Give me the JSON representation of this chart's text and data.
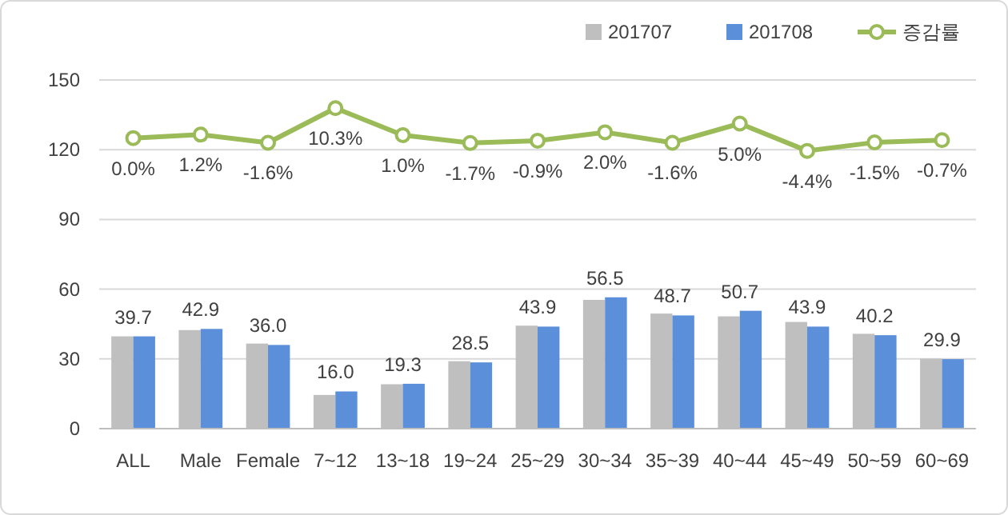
{
  "chart_data": {
    "type": "bar",
    "categories": [
      "ALL",
      "Male",
      "Female",
      "7~12",
      "13~18",
      "19~24",
      "25~29",
      "30~34",
      "35~39",
      "40~44",
      "45~49",
      "50~59",
      "60~69"
    ],
    "series": [
      {
        "name": "201707",
        "color": "#bfbfbf",
        "values": [
          39.7,
          42.4,
          36.6,
          14.5,
          19.1,
          29.0,
          44.3,
          55.4,
          49.5,
          48.3,
          45.9,
          40.8,
          30.1
        ]
      },
      {
        "name": "201708",
        "color": "#5b8fd9",
        "values": [
          39.7,
          42.9,
          36.0,
          16.0,
          19.3,
          28.5,
          43.9,
          56.5,
          48.7,
          50.7,
          43.9,
          40.2,
          29.9
        ],
        "value_labels": [
          "39.7",
          "42.9",
          "36.0",
          "16.0",
          "19.3",
          "28.5",
          "43.9",
          "56.5",
          "48.7",
          "50.7",
          "43.9",
          "40.2",
          "29.9"
        ]
      },
      {
        "name": "증감률",
        "type": "line",
        "axis": "y2",
        "color": "#9bbb59",
        "values": [
          0.0,
          1.2,
          -1.6,
          10.3,
          1.0,
          -1.7,
          -0.9,
          2.0,
          -1.6,
          5.0,
          -4.4,
          -1.5,
          -0.7
        ],
        "value_labels": [
          "0.0%",
          "1.2%",
          "-1.6%",
          "10.3%",
          "1.0%",
          "-1.7%",
          "-0.9%",
          "2.0%",
          "-1.6%",
          "5.0%",
          "-4.4%",
          "-1.5%",
          "-0.7%"
        ]
      }
    ],
    "ylim": [
      0,
      150
    ],
    "yticks": [
      0,
      30,
      60,
      90,
      120,
      150
    ],
    "y2lim": [
      -100,
      20
    ],
    "tick_labels": "xy",
    "grid": "y",
    "legend": "top right",
    "marker": "circle",
    "line_style": "solid"
  }
}
